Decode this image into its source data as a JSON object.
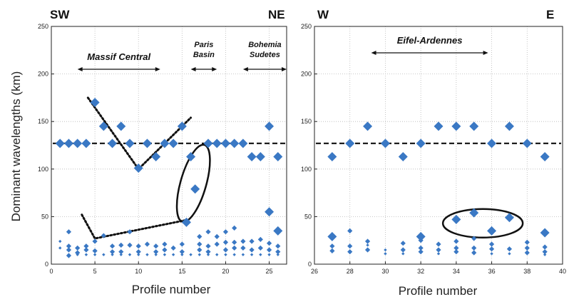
{
  "chart_data": [
    {
      "type": "scatter",
      "xlabel": "Profile number",
      "ylabel": "Dominant wavelengths  (km)",
      "xlim": [
        0,
        27
      ],
      "ylim": [
        0,
        250
      ],
      "xticks": [
        "0",
        "5",
        "10",
        "15",
        "20",
        "25"
      ],
      "yticks": [
        "0",
        "50",
        "100",
        "150",
        "200",
        "250"
      ],
      "grid": true,
      "direction_labels": {
        "left": "SW",
        "right": "NE"
      },
      "regions": [
        {
          "label": "Massif Central",
          "x_range": [
            3,
            12.5
          ]
        },
        {
          "label": "Paris Basin",
          "x_range": [
            16,
            19
          ]
        },
        {
          "label": "Bohemia Sudetes",
          "x_range": [
            22,
            27
          ]
        }
      ],
      "reference_line": {
        "y": 127,
        "style": "dashed"
      },
      "large_points": [
        [
          1,
          127
        ],
        [
          2,
          127
        ],
        [
          3,
          127
        ],
        [
          4,
          127
        ],
        [
          5,
          170
        ],
        [
          6,
          145
        ],
        [
          7,
          127
        ],
        [
          8,
          145
        ],
        [
          9,
          127
        ],
        [
          10,
          101
        ],
        [
          11,
          127
        ],
        [
          12,
          113
        ],
        [
          13,
          127
        ],
        [
          14,
          127
        ],
        [
          15,
          145
        ],
        [
          16,
          113
        ],
        [
          16.5,
          79
        ],
        [
          15.5,
          44
        ],
        [
          18,
          127
        ],
        [
          19,
          127
        ],
        [
          20,
          127
        ],
        [
          21,
          127
        ],
        [
          22,
          127
        ],
        [
          23,
          113
        ],
        [
          24,
          113
        ],
        [
          25,
          145
        ],
        [
          26,
          113
        ],
        [
          25,
          55
        ],
        [
          26,
          35
        ]
      ],
      "small_points": [
        [
          2,
          34
        ],
        [
          2,
          19
        ],
        [
          2,
          15
        ],
        [
          2,
          9
        ],
        [
          3,
          17
        ],
        [
          3,
          12
        ],
        [
          4,
          19
        ],
        [
          4,
          15
        ],
        [
          5,
          24
        ],
        [
          5,
          14
        ],
        [
          6,
          30
        ],
        [
          7,
          19
        ],
        [
          7,
          13
        ],
        [
          8,
          20
        ],
        [
          8,
          13
        ],
        [
          9,
          34
        ],
        [
          9,
          20
        ],
        [
          10,
          19
        ],
        [
          10,
          13
        ],
        [
          11,
          21
        ],
        [
          12,
          19
        ],
        [
          12,
          13
        ],
        [
          13,
          21
        ],
        [
          13,
          15
        ],
        [
          14,
          17
        ],
        [
          15,
          21
        ],
        [
          15,
          13
        ],
        [
          17,
          29
        ],
        [
          17,
          21
        ],
        [
          17,
          15
        ],
        [
          18,
          34
        ],
        [
          18,
          19
        ],
        [
          18,
          13
        ],
        [
          19,
          29
        ],
        [
          19,
          21
        ],
        [
          20,
          34
        ],
        [
          20,
          23
        ],
        [
          20,
          15
        ],
        [
          21,
          38
        ],
        [
          21,
          23
        ],
        [
          21,
          17
        ],
        [
          22,
          24
        ],
        [
          22,
          17
        ],
        [
          23,
          24
        ],
        [
          23,
          15
        ],
        [
          24,
          26
        ],
        [
          24,
          17
        ],
        [
          25,
          22
        ],
        [
          25,
          15
        ],
        [
          26,
          19
        ],
        [
          26,
          13
        ]
      ],
      "tiny_points": [
        [
          1,
          24
        ],
        [
          1,
          17
        ],
        [
          2,
          10
        ],
        [
          3,
          10
        ],
        [
          4,
          10
        ],
        [
          5,
          10
        ],
        [
          6,
          10
        ],
        [
          7,
          10
        ],
        [
          8,
          10
        ],
        [
          9,
          10
        ],
        [
          10,
          10
        ],
        [
          11,
          10
        ],
        [
          12,
          10
        ],
        [
          13,
          10
        ],
        [
          14,
          10
        ],
        [
          15,
          10
        ],
        [
          16,
          10
        ],
        [
          17,
          10
        ],
        [
          18,
          10
        ],
        [
          19,
          10
        ],
        [
          20,
          10
        ],
        [
          21,
          10
        ],
        [
          22,
          10
        ],
        [
          23,
          10
        ],
        [
          24,
          10
        ],
        [
          25,
          10
        ],
        [
          26,
          10
        ]
      ]
    },
    {
      "type": "scatter",
      "xlabel": "Profile number",
      "ylabel": "",
      "xlim": [
        26,
        40
      ],
      "ylim": [
        0,
        250
      ],
      "xticks": [
        "26",
        "28",
        "30",
        "32",
        "34",
        "36",
        "38",
        "40"
      ],
      "yticks": [
        "0",
        "50",
        "100",
        "150",
        "200",
        "250"
      ],
      "grid": true,
      "direction_labels": {
        "left": "W",
        "right": "E"
      },
      "regions": [
        {
          "label": "Eifel-Ardennes",
          "x_range": [
            29.2,
            35.8
          ]
        }
      ],
      "reference_line": {
        "y": 127,
        "style": "dashed"
      },
      "large_points": [
        [
          27,
          113
        ],
        [
          28,
          127
        ],
        [
          29,
          145
        ],
        [
          30,
          127
        ],
        [
          31,
          113
        ],
        [
          32,
          127
        ],
        [
          33,
          145
        ],
        [
          34,
          145
        ],
        [
          35,
          145
        ],
        [
          36,
          127
        ],
        [
          37,
          145
        ],
        [
          38,
          127
        ],
        [
          39,
          113
        ],
        [
          34,
          47
        ],
        [
          35,
          54
        ],
        [
          36,
          35
        ],
        [
          37,
          49
        ],
        [
          39,
          33
        ],
        [
          32,
          29
        ],
        [
          27,
          29
        ]
      ],
      "small_points": [
        [
          27,
          19
        ],
        [
          27,
          14
        ],
        [
          28,
          35
        ],
        [
          28,
          19
        ],
        [
          28,
          13
        ],
        [
          29,
          24
        ],
        [
          29,
          15
        ],
        [
          31,
          22
        ],
        [
          31,
          15
        ],
        [
          32,
          25
        ],
        [
          32,
          17
        ],
        [
          32,
          13
        ],
        [
          33,
          21
        ],
        [
          33,
          15
        ],
        [
          34,
          24
        ],
        [
          34,
          17
        ],
        [
          34,
          13
        ],
        [
          35,
          27
        ],
        [
          35,
          17
        ],
        [
          35,
          12
        ],
        [
          36,
          21
        ],
        [
          36,
          16
        ],
        [
          37,
          16
        ],
        [
          38,
          23
        ],
        [
          38,
          17
        ],
        [
          38,
          12
        ],
        [
          39,
          18
        ],
        [
          39,
          13
        ]
      ],
      "tiny_points": [
        [
          29,
          20
        ],
        [
          30,
          15
        ],
        [
          30,
          11
        ],
        [
          31,
          11
        ],
        [
          33,
          11
        ],
        [
          36,
          11
        ],
        [
          37,
          11
        ],
        [
          39,
          10
        ]
      ]
    }
  ]
}
